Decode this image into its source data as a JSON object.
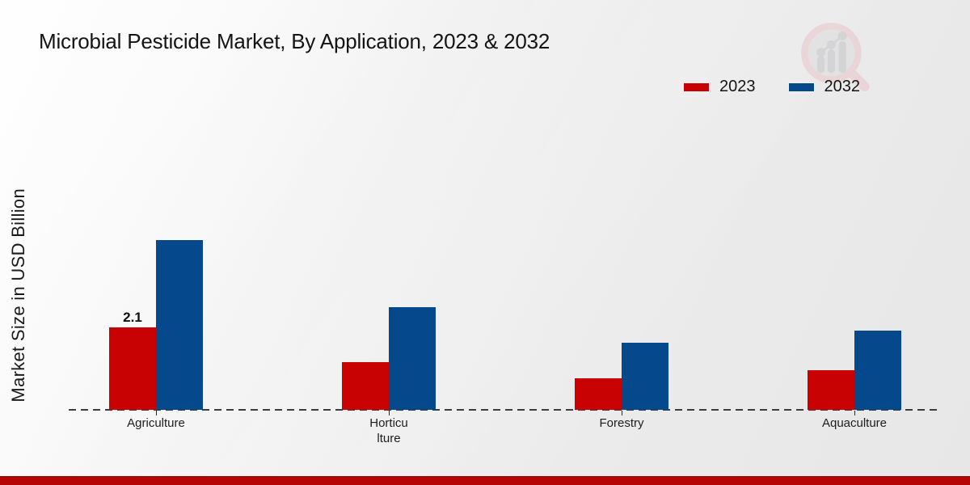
{
  "title": "Microbial Pesticide Market, By Application, 2023 & 2032",
  "ylabel": "Market Size in USD Billion",
  "accent_band_color": "#b50505",
  "watermark_icon": "magnifier-growth-chart-logo",
  "chart_data": {
    "type": "bar",
    "title": "Microbial Pesticide Market, By Application, 2023 & 2032",
    "xlabel": "",
    "ylabel": "Market Size in USD Billion",
    "categories": [
      "Agriculture",
      "Horticu\nlture",
      "Forestry",
      "Aquaculture"
    ],
    "series": [
      {
        "name": "2023",
        "color": "#c80202",
        "values": [
          2.1,
          1.2,
          0.8,
          1.0
        ]
      },
      {
        "name": "2032",
        "color": "#05498c",
        "values": [
          4.3,
          2.6,
          1.7,
          2.0
        ]
      }
    ],
    "data_labels": [
      {
        "series_index": 0,
        "category_index": 0,
        "text": "2.1"
      }
    ],
    "ylim": [
      0,
      4.5
    ],
    "grid": false,
    "legend_position": "top-right",
    "axis_line_style": "dashed",
    "y_ticks_visible": false
  }
}
